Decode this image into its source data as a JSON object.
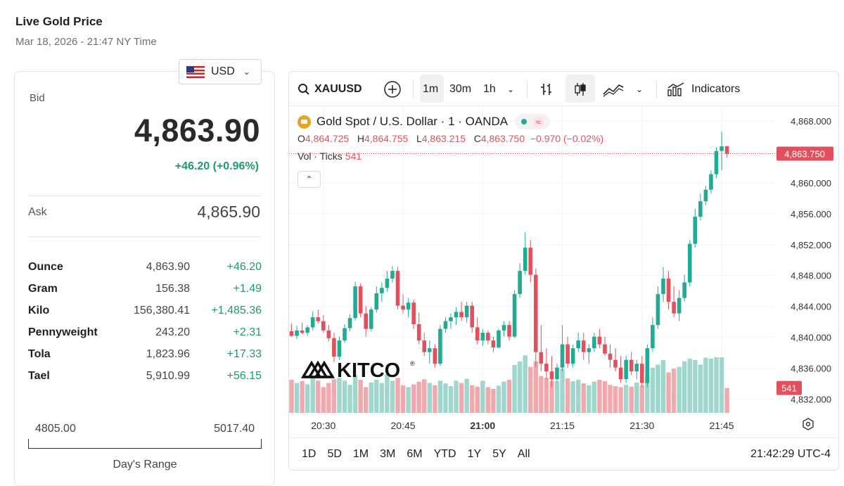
{
  "header": {
    "title": "Live Gold Price",
    "subtitle": "Mar 18, 2026 - 21:47 NY Time"
  },
  "currency": {
    "selected": "USD",
    "flag_icon": "us-flag-icon"
  },
  "quote": {
    "bid_label": "Bid",
    "bid": "4,863.90",
    "change": "+46.20 (+0.96%)",
    "ask_label": "Ask",
    "ask": "4,865.90"
  },
  "units": [
    {
      "name": "Ounce",
      "price": "4,863.90",
      "change": "+46.20"
    },
    {
      "name": "Gram",
      "price": "156.38",
      "change": "+1.49"
    },
    {
      "name": "Kilo",
      "price": "156,380.41",
      "change": "+1,485.36"
    },
    {
      "name": "Pennyweight",
      "price": "243.20",
      "change": "+2.31"
    },
    {
      "name": "Tola",
      "price": "1,823.96",
      "change": "+17.33"
    },
    {
      "name": "Tael",
      "price": "5,910.99",
      "change": "+56.15"
    }
  ],
  "days_range": {
    "low": "4805.00",
    "high": "5017.40",
    "label": "Day's Range"
  },
  "toolbar": {
    "symbol": "XAUUSD",
    "intervals": [
      "1m",
      "30m",
      "1h"
    ],
    "active_interval": "1m",
    "indicators_label": "Indicators"
  },
  "legend": {
    "title": "Gold Spot / U.S. Dollar · 1 · OANDA",
    "o_label": "O",
    "o": "4,864.725",
    "h_label": "H",
    "h": "4,864.755",
    "l_label": "L",
    "l": "4,863.215",
    "c_label": "C",
    "c": "4,863.750",
    "chg": "−0.970 (−0.02%)",
    "vol_label": "Vol · Ticks",
    "vol": "541"
  },
  "watermark": "KITCO",
  "bottom": {
    "ranges": [
      "1D",
      "5D",
      "1M",
      "3M",
      "6M",
      "YTD",
      "1Y",
      "5Y",
      "All"
    ],
    "clock": "21:42:29 UTC-4"
  },
  "colors": {
    "up": "#22ab94",
    "down": "#e2505c",
    "up_vol": "#9fd6cd",
    "down_vol": "#f0a9ad",
    "positive_text": "#1e9a6c"
  },
  "chart_data": {
    "type": "candlestick",
    "title": "Gold Spot / U.S. Dollar · 1 · OANDA",
    "y_ticks": [
      4868,
      4864,
      4860,
      4856,
      4852,
      4848,
      4844,
      4840,
      4836,
      4832
    ],
    "y_tick_labels": [
      "4,868.000",
      "4,864.000",
      "4,860.000",
      "4,856.000",
      "4,852.000",
      "4,848.000",
      "4,844.000",
      "4,840.000",
      "4,836.000",
      "4,832.000"
    ],
    "ylim": [
      4830.7,
      4869.8
    ],
    "x_ticks": [
      {
        "t": 6,
        "label": "20:30"
      },
      {
        "t": 21,
        "label": "20:45"
      },
      {
        "t": 36,
        "label": "21:00"
      },
      {
        "t": 51,
        "label": "21:15"
      },
      {
        "t": 66,
        "label": "21:30"
      },
      {
        "t": 81,
        "label": "21:45"
      }
    ],
    "x_start_time": "20:24",
    "last_price_label": "4,863.750",
    "last_price": 4863.75,
    "last_volume_label": "541",
    "vol_max": 1300,
    "candles": [
      [
        4840.8,
        4841.8,
        4840.1,
        4840.2,
        720
      ],
      [
        4840.2,
        4841.5,
        4839.8,
        4840.9,
        650
      ],
      [
        4840.9,
        4841.9,
        4840.4,
        4840.6,
        690
      ],
      [
        4840.6,
        4841.6,
        4840.2,
        4841.3,
        620
      ],
      [
        4841.3,
        4843.4,
        4840.9,
        4842.6,
        810
      ],
      [
        4842.6,
        4843.6,
        4841.8,
        4842.1,
        700
      ],
      [
        4842.1,
        4842.9,
        4840.6,
        4840.9,
        560
      ],
      [
        4840.9,
        4841.6,
        4839.5,
        4839.9,
        650
      ],
      [
        4839.9,
        4840.6,
        4836.8,
        4837.5,
        730
      ],
      [
        4837.5,
        4840.1,
        4837.1,
        4839.6,
        760
      ],
      [
        4839.6,
        4841.7,
        4839.3,
        4841.2,
        700
      ],
      [
        4841.2,
        4843.0,
        4840.8,
        4842.5,
        610
      ],
      [
        4842.5,
        4847.2,
        4842.2,
        4846.6,
        820
      ],
      [
        4846.6,
        4847.0,
        4842.6,
        4843.1,
        720
      ],
      [
        4843.1,
        4844.1,
        4840.1,
        4841.1,
        560
      ],
      [
        4841.1,
        4843.9,
        4840.8,
        4843.6,
        660
      ],
      [
        4843.6,
        4846.6,
        4843.2,
        4845.7,
        720
      ],
      [
        4845.7,
        4847.1,
        4844.6,
        4846.4,
        650
      ],
      [
        4846.4,
        4848.6,
        4845.9,
        4847.6,
        840
      ],
      [
        4847.6,
        4849.2,
        4847.1,
        4848.6,
        700
      ],
      [
        4848.6,
        4849.1,
        4843.6,
        4844.1,
        760
      ],
      [
        4844.1,
        4845.6,
        4843.1,
        4843.6,
        600
      ],
      [
        4843.6,
        4845.1,
        4842.6,
        4844.5,
        560
      ],
      [
        4844.5,
        4844.9,
        4841.1,
        4841.7,
        620
      ],
      [
        4841.7,
        4843.2,
        4839.1,
        4839.6,
        680
      ],
      [
        4839.6,
        4840.6,
        4837.6,
        4838.1,
        730
      ],
      [
        4838.1,
        4839.6,
        4836.6,
        4838.6,
        650
      ],
      [
        4838.6,
        4839.1,
        4836.1,
        4836.6,
        600
      ],
      [
        4836.6,
        4841.6,
        4836.3,
        4841.1,
        700
      ],
      [
        4841.1,
        4842.6,
        4840.6,
        4842.1,
        640
      ],
      [
        4842.1,
        4843.1,
        4841.1,
        4842.6,
        580
      ],
      [
        4842.6,
        4843.9,
        4841.6,
        4843.3,
        700
      ],
      [
        4843.3,
        4844.6,
        4842.1,
        4842.6,
        650
      ],
      [
        4842.6,
        4844.6,
        4841.9,
        4844.1,
        740
      ],
      [
        4844.1,
        4844.6,
        4840.6,
        4841.3,
        600
      ],
      [
        4841.3,
        4842.6,
        4839.1,
        4839.6,
        570
      ],
      [
        4839.6,
        4841.1,
        4838.9,
        4840.6,
        700
      ],
      [
        4840.6,
        4840.9,
        4839.1,
        4839.6,
        560
      ],
      [
        4839.6,
        4840.1,
        4838.1,
        4838.7,
        520
      ],
      [
        4838.7,
        4841.1,
        4838.6,
        4840.9,
        590
      ],
      [
        4840.9,
        4842.1,
        4840.1,
        4841.6,
        680
      ],
      [
        4841.6,
        4842.1,
        4839.6,
        4840.1,
        720
      ],
      [
        4840.1,
        4846.1,
        4839.9,
        4845.6,
        1040
      ],
      [
        4845.6,
        4849.6,
        4845.1,
        4848.6,
        1120
      ],
      [
        4848.6,
        4853.6,
        4848.1,
        4851.6,
        1250
      ],
      [
        4851.6,
        4852.6,
        4847.1,
        4848.1,
        1000
      ],
      [
        4848.1,
        4848.9,
        4836.1,
        4838.1,
        1120
      ],
      [
        4838.1,
        4841.6,
        4835.6,
        4836.6,
        800
      ],
      [
        4836.6,
        4838.6,
        4834.6,
        4835.6,
        760
      ],
      [
        4835.6,
        4837.6,
        4833.6,
        4834.6,
        690
      ],
      [
        4834.6,
        4836.6,
        4834.1,
        4836.1,
        680
      ],
      [
        4836.1,
        4841.6,
        4835.6,
        4839.1,
        960
      ],
      [
        4839.1,
        4840.1,
        4836.1,
        4836.6,
        750
      ],
      [
        4836.6,
        4839.1,
        4836.1,
        4838.6,
        690
      ],
      [
        4838.6,
        4840.6,
        4838.1,
        4839.6,
        720
      ],
      [
        4839.6,
        4840.6,
        4837.1,
        4838.1,
        640
      ],
      [
        4838.1,
        4839.1,
        4836.6,
        4838.6,
        600
      ],
      [
        4838.6,
        4840.6,
        4838.1,
        4840.1,
        680
      ],
      [
        4840.1,
        4841.1,
        4838.6,
        4839.1,
        720
      ],
      [
        4839.1,
        4840.1,
        4837.6,
        4837.9,
        690
      ],
      [
        4837.9,
        4839.1,
        4836.1,
        4837.1,
        610
      ],
      [
        4837.1,
        4838.6,
        4835.6,
        4836.1,
        580
      ],
      [
        4836.1,
        4837.6,
        4834.1,
        4834.6,
        560
      ],
      [
        4834.6,
        4837.6,
        4834.1,
        4837.1,
        610
      ],
      [
        4837.1,
        4838.1,
        4835.1,
        4835.6,
        570
      ],
      [
        4835.6,
        4837.1,
        4834.6,
        4836.6,
        660
      ],
      [
        4836.6,
        4837.6,
        4833.6,
        4834.1,
        600
      ],
      [
        4834.1,
        4839.1,
        4833.6,
        4838.6,
        820
      ],
      [
        4838.6,
        4842.6,
        4838.1,
        4841.6,
        980
      ],
      [
        4841.6,
        4846.6,
        4841.1,
        4845.6,
        1050
      ],
      [
        4845.6,
        4849.1,
        4844.6,
        4847.6,
        1150
      ],
      [
        4847.6,
        4848.6,
        4843.6,
        4844.6,
        880
      ],
      [
        4844.6,
        4846.6,
        4842.6,
        4843.1,
        960
      ],
      [
        4843.1,
        4846.1,
        4842.1,
        4845.1,
        1000
      ],
      [
        4845.1,
        4848.1,
        4844.6,
        4847.1,
        1120
      ],
      [
        4847.1,
        4852.6,
        4846.6,
        4852.1,
        1180
      ],
      [
        4852.1,
        4856.6,
        4851.6,
        4855.6,
        1150
      ],
      [
        4855.6,
        4858.6,
        4855.1,
        4857.6,
        1050
      ],
      [
        4857.6,
        4859.6,
        4857.1,
        4859.1,
        1200
      ],
      [
        4859.1,
        4861.6,
        4858.6,
        4861.1,
        1180
      ],
      [
        4861.1,
        4864.6,
        4860.6,
        4864.1,
        1210
      ],
      [
        4864.1,
        4866.6,
        4861.6,
        4864.7,
        1210
      ],
      [
        4864.725,
        4864.755,
        4863.215,
        4863.75,
        541
      ]
    ]
  }
}
